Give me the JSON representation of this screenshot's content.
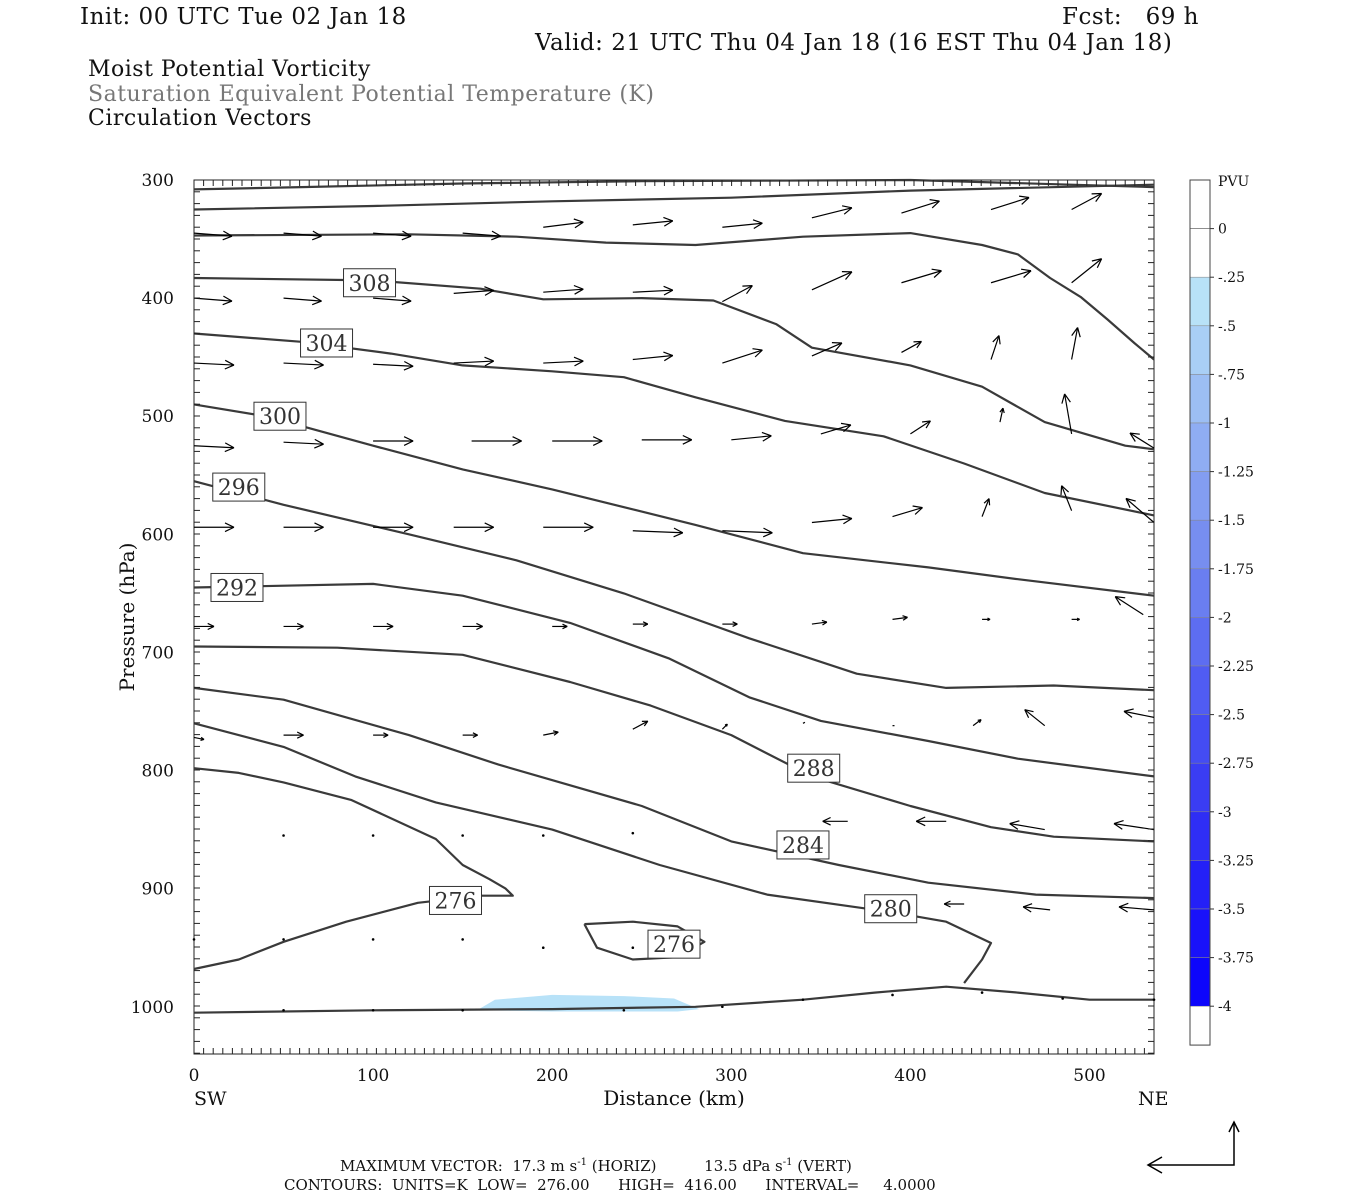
{
  "header": {
    "init": "Init: 00 UTC Tue 02 Jan 18",
    "fcst": "Fcst:   69 h",
    "valid": "Valid: 21 UTC Thu 04 Jan 18 (16 EST Thu 04 Jan 18)",
    "fields": [
      "Moist Potential Vorticity",
      "Saturation Equivalent Potential Temperature (K)",
      "Circulation Vectors"
    ]
  },
  "chart_data": {
    "type": "cross-section contour",
    "xlabel": "Distance (km)",
    "ylabel": "Pressure (hPa)",
    "xlim": [
      0,
      536
    ],
    "ylim": [
      1040,
      300
    ],
    "x_ticks": [
      0,
      100,
      200,
      300,
      400,
      500
    ],
    "y_ticks": [
      300,
      400,
      500,
      600,
      700,
      800,
      900,
      1000
    ],
    "x_end_labels": {
      "left": "SW",
      "right": "NE"
    },
    "grid": false,
    "contour_color": "#3a3a3a",
    "contours": [
      {
        "label": "",
        "points": [
          [
            0,
            308
          ],
          [
            60,
            306
          ],
          [
            150,
            303
          ],
          [
            250,
            301
          ],
          [
            400,
            300
          ],
          [
            536,
            306
          ]
        ]
      },
      {
        "label": "",
        "points": [
          [
            0,
            325
          ],
          [
            100,
            322
          ],
          [
            200,
            318
          ],
          [
            300,
            315
          ],
          [
            400,
            309
          ],
          [
            536,
            304
          ]
        ]
      },
      {
        "label": "",
        "points": [
          [
            0,
            347
          ],
          [
            120,
            346
          ],
          [
            180,
            348
          ],
          [
            230,
            353
          ],
          [
            280,
            355
          ],
          [
            340,
            348
          ],
          [
            400,
            345
          ],
          [
            440,
            355
          ],
          [
            460,
            363
          ],
          [
            478,
            383
          ],
          [
            495,
            399
          ],
          [
            510,
            418
          ],
          [
            525,
            438
          ],
          [
            536,
            452
          ]
        ]
      },
      {
        "label": "308",
        "label_at": [
          98,
          387
        ],
        "points": [
          [
            0,
            383
          ],
          [
            100,
            385
          ],
          [
            160,
            392
          ],
          [
            195,
            401
          ],
          [
            250,
            400
          ],
          [
            290,
            402
          ],
          [
            325,
            422
          ],
          [
            345,
            442
          ],
          [
            400,
            457
          ],
          [
            440,
            475
          ],
          [
            475,
            505
          ],
          [
            520,
            525
          ],
          [
            536,
            528
          ]
        ]
      },
      {
        "label": "304",
        "label_at": [
          74,
          438
        ],
        "points": [
          [
            0,
            430
          ],
          [
            60,
            437
          ],
          [
            110,
            447
          ],
          [
            150,
            457
          ],
          [
            200,
            462
          ],
          [
            240,
            467
          ],
          [
            280,
            484
          ],
          [
            330,
            504
          ],
          [
            385,
            517
          ],
          [
            430,
            540
          ],
          [
            475,
            565
          ],
          [
            536,
            584
          ]
        ]
      },
      {
        "label": "300",
        "label_at": [
          48,
          500
        ],
        "points": [
          [
            0,
            490
          ],
          [
            40,
            500
          ],
          [
            100,
            525
          ],
          [
            150,
            545
          ],
          [
            200,
            562
          ],
          [
            280,
            592
          ],
          [
            340,
            616
          ],
          [
            410,
            628
          ],
          [
            460,
            638
          ],
          [
            536,
            652
          ]
        ]
      },
      {
        "label": "296",
        "label_at": [
          25,
          560
        ],
        "points": [
          [
            0,
            555
          ],
          [
            50,
            575
          ],
          [
            120,
            600
          ],
          [
            180,
            622
          ],
          [
            240,
            650
          ],
          [
            310,
            688
          ],
          [
            370,
            718
          ],
          [
            420,
            730
          ],
          [
            480,
            728
          ],
          [
            536,
            732
          ]
        ]
      },
      {
        "label": "292",
        "label_at": [
          24,
          645
        ],
        "points": [
          [
            0,
            645
          ],
          [
            100,
            642
          ],
          [
            150,
            652
          ],
          [
            210,
            675
          ],
          [
            265,
            705
          ],
          [
            310,
            738
          ],
          [
            350,
            758
          ],
          [
            410,
            775
          ],
          [
            460,
            790
          ],
          [
            536,
            805
          ]
        ]
      },
      {
        "label": "288",
        "label_at": [
          346,
          798
        ],
        "points": [
          [
            0,
            695
          ],
          [
            80,
            696
          ],
          [
            150,
            702
          ],
          [
            210,
            725
          ],
          [
            255,
            745
          ],
          [
            300,
            770
          ],
          [
            345,
            805
          ],
          [
            400,
            830
          ],
          [
            445,
            848
          ],
          [
            480,
            856
          ],
          [
            536,
            860
          ]
        ]
      },
      {
        "label": "284",
        "label_at": [
          340,
          863
        ],
        "points": [
          [
            0,
            730
          ],
          [
            50,
            740
          ],
          [
            120,
            770
          ],
          [
            170,
            795
          ],
          [
            250,
            830
          ],
          [
            300,
            860
          ],
          [
            360,
            880
          ],
          [
            410,
            895
          ],
          [
            470,
            905
          ],
          [
            536,
            908
          ]
        ]
      },
      {
        "label": "280",
        "label_at": [
          389,
          917
        ],
        "points": [
          [
            0,
            760
          ],
          [
            50,
            780
          ],
          [
            90,
            805
          ],
          [
            135,
            827
          ],
          [
            200,
            850
          ],
          [
            260,
            880
          ],
          [
            320,
            905
          ],
          [
            390,
            920
          ],
          [
            420,
            928
          ],
          [
            445,
            946
          ],
          [
            440,
            960
          ],
          [
            430,
            980
          ]
        ]
      },
      {
        "label": "276",
        "label_at": [
          146,
          910
        ],
        "points": [
          [
            0,
            968
          ],
          [
            25,
            960
          ],
          [
            50,
            945
          ],
          [
            85,
            928
          ],
          [
            125,
            912
          ],
          [
            160,
            906
          ],
          [
            178,
            906
          ],
          [
            174,
            900
          ],
          [
            165,
            892
          ],
          [
            150,
            880
          ],
          [
            135,
            858
          ],
          [
            88,
            825
          ],
          [
            50,
            810
          ],
          [
            25,
            802
          ],
          [
            0,
            798
          ]
        ]
      },
      {
        "label": "276",
        "label_at": [
          268,
          947
        ],
        "points": [
          [
            218,
            930
          ],
          [
            245,
            928
          ],
          [
            270,
            932
          ],
          [
            285,
            945
          ],
          [
            270,
            958
          ],
          [
            245,
            960
          ],
          [
            225,
            950
          ],
          [
            218,
            930
          ]
        ]
      },
      {
        "label": "",
        "points": [
          [
            0,
            1005
          ],
          [
            100,
            1003
          ],
          [
            200,
            1002
          ],
          [
            280,
            1000
          ],
          [
            340,
            994
          ],
          [
            380,
            988
          ],
          [
            420,
            983
          ],
          [
            460,
            988
          ],
          [
            500,
            994
          ],
          [
            536,
            994
          ]
        ]
      }
    ],
    "legend": {
      "title": "PVU",
      "labels": [
        "0",
        "-.25",
        "-.5",
        "-.75",
        "-1",
        "-1.25",
        "-1.5",
        "-1.75",
        "-2",
        "-2.25",
        "-2.5",
        "-2.75",
        "-3",
        "-3.25",
        "-3.5",
        "-3.75",
        "-4"
      ],
      "colors": [
        "#ffffff",
        "#b8e2f8",
        "#a9cff6",
        "#9cbef4",
        "#8fadf3",
        "#839df1",
        "#778ef0",
        "#6a7ef0",
        "#5d6df1",
        "#505cf2",
        "#444cf3",
        "#3a3df4",
        "#2f2ef5",
        "#2420f7",
        "#1912f9",
        "#0d06fb"
      ]
    },
    "pv_shading": {
      "value": "-.25",
      "color": "#b8e2f8",
      "points": [
        [
          158,
          1003
        ],
        [
          168,
          994
        ],
        [
          200,
          990
        ],
        [
          240,
          991
        ],
        [
          268,
          993
        ],
        [
          282,
          1002
        ],
        [
          270,
          1004
        ],
        [
          200,
          1004
        ],
        [
          158,
          1003
        ]
      ]
    },
    "vectors": [
      [
        0,
        345,
        38,
        3
      ],
      [
        50,
        345,
        38,
        3
      ],
      [
        100,
        345,
        38,
        3
      ],
      [
        150,
        345,
        38,
        3
      ],
      [
        195,
        340,
        40,
        -5
      ],
      [
        245,
        338,
        40,
        -4
      ],
      [
        295,
        340,
        40,
        -4
      ],
      [
        345,
        332,
        40,
        -10
      ],
      [
        395,
        328,
        38,
        -12
      ],
      [
        445,
        325,
        38,
        -12
      ],
      [
        490,
        325,
        30,
        -16
      ],
      [
        0,
        400,
        38,
        3
      ],
      [
        50,
        400,
        38,
        3
      ],
      [
        100,
        400,
        38,
        3
      ],
      [
        145,
        396,
        40,
        -3
      ],
      [
        195,
        395,
        40,
        -3
      ],
      [
        245,
        395,
        40,
        -2
      ],
      [
        295,
        403,
        30,
        -16
      ],
      [
        345,
        393,
        40,
        -18
      ],
      [
        395,
        387,
        40,
        -12
      ],
      [
        445,
        387,
        40,
        -12
      ],
      [
        490,
        387,
        30,
        -24
      ],
      [
        0,
        455,
        40,
        2
      ],
      [
        50,
        455,
        40,
        2
      ],
      [
        100,
        456,
        40,
        2
      ],
      [
        145,
        455,
        40,
        -2
      ],
      [
        195,
        455,
        40,
        -2
      ],
      [
        245,
        452,
        40,
        -4
      ],
      [
        295,
        455,
        40,
        -13
      ],
      [
        345,
        449,
        30,
        -13
      ],
      [
        395,
        446,
        20,
        -11
      ],
      [
        445,
        452,
        8,
        -24
      ],
      [
        490,
        452,
        6,
        -32
      ],
      [
        0,
        525,
        40,
        2
      ],
      [
        50,
        522,
        40,
        2
      ],
      [
        100,
        521,
        40,
        0
      ],
      [
        155,
        521,
        50,
        0
      ],
      [
        200,
        521,
        50,
        0
      ],
      [
        250,
        520,
        50,
        0
      ],
      [
        300,
        520,
        40,
        -4
      ],
      [
        350,
        515,
        30,
        -9
      ],
      [
        400,
        515,
        20,
        -13
      ],
      [
        450,
        505,
        3,
        -14
      ],
      [
        490,
        515,
        -7,
        -40
      ],
      [
        536,
        527,
        -24,
        -15
      ],
      [
        0,
        594,
        40,
        0
      ],
      [
        50,
        594,
        40,
        0
      ],
      [
        100,
        594,
        40,
        0
      ],
      [
        145,
        594,
        40,
        0
      ],
      [
        195,
        594,
        50,
        0
      ],
      [
        245,
        597,
        50,
        2
      ],
      [
        295,
        597,
        50,
        2
      ],
      [
        345,
        590,
        40,
        -4
      ],
      [
        390,
        585,
        30,
        -9
      ],
      [
        440,
        585,
        7,
        -18
      ],
      [
        490,
        580,
        -10,
        -25
      ],
      [
        536,
        590,
        -28,
        -24
      ],
      [
        0,
        678,
        20,
        0
      ],
      [
        50,
        678,
        20,
        0
      ],
      [
        100,
        678,
        20,
        0
      ],
      [
        150,
        678,
        20,
        0
      ],
      [
        200,
        678,
        15,
        0
      ],
      [
        245,
        676,
        15,
        0
      ],
      [
        295,
        676,
        15,
        0
      ],
      [
        345,
        676,
        15,
        -2
      ],
      [
        390,
        672,
        15,
        -2
      ],
      [
        440,
        672,
        8,
        0
      ],
      [
        490,
        672,
        8,
        0
      ],
      [
        530,
        668,
        -28,
        -18
      ],
      [
        0,
        772,
        10,
        2
      ],
      [
        50,
        770,
        20,
        0
      ],
      [
        100,
        770,
        15,
        0
      ],
      [
        150,
        770,
        15,
        0
      ],
      [
        195,
        770,
        15,
        -3
      ],
      [
        245,
        765,
        15,
        -8
      ],
      [
        295,
        765,
        5,
        -5
      ],
      [
        340,
        760,
        2,
        -1
      ],
      [
        390,
        762,
        2,
        0
      ],
      [
        435,
        762,
        8,
        -6
      ],
      [
        475,
        762,
        -20,
        -16
      ],
      [
        536,
        755,
        -30,
        -6
      ],
      [
        365,
        843,
        -25,
        0
      ],
      [
        420,
        843,
        -30,
        0
      ],
      [
        475,
        850,
        -35,
        -6
      ],
      [
        536,
        850,
        -40,
        -6
      ],
      [
        430,
        913,
        -20,
        0
      ],
      [
        478,
        918,
        -27,
        -3
      ],
      [
        536,
        918,
        -35,
        -3
      ]
    ],
    "dot_vectors": [
      [
        50,
        855
      ],
      [
        100,
        855
      ],
      [
        150,
        855
      ],
      [
        195,
        855
      ],
      [
        245,
        853
      ],
      [
        0,
        943
      ],
      [
        50,
        943
      ],
      [
        100,
        943
      ],
      [
        150,
        943
      ],
      [
        195,
        950
      ],
      [
        245,
        950
      ],
      [
        295,
        1000
      ],
      [
        340,
        994
      ],
      [
        390,
        990
      ],
      [
        440,
        988
      ],
      [
        485,
        993
      ],
      [
        536,
        994
      ],
      [
        50,
        1003
      ],
      [
        100,
        1003
      ],
      [
        150,
        1003
      ],
      [
        240,
        1003
      ]
    ],
    "reference_vector": {
      "horizontal_label": "",
      "vertical_label": ""
    }
  },
  "footer": {
    "max_vector_prefix": "MAXIMUM VECTOR:  17.3 m s",
    "max_vector_exp": "-1",
    "max_vector_mid": " (HORIZ)          13.5 dPa s",
    "max_vector_exp2": "-1",
    "max_vector_suffix": " (VERT)",
    "contours": "CONTOURS:  UNITS=K  LOW=  276.00      HIGH=  416.00      INTERVAL=     4.0000"
  }
}
